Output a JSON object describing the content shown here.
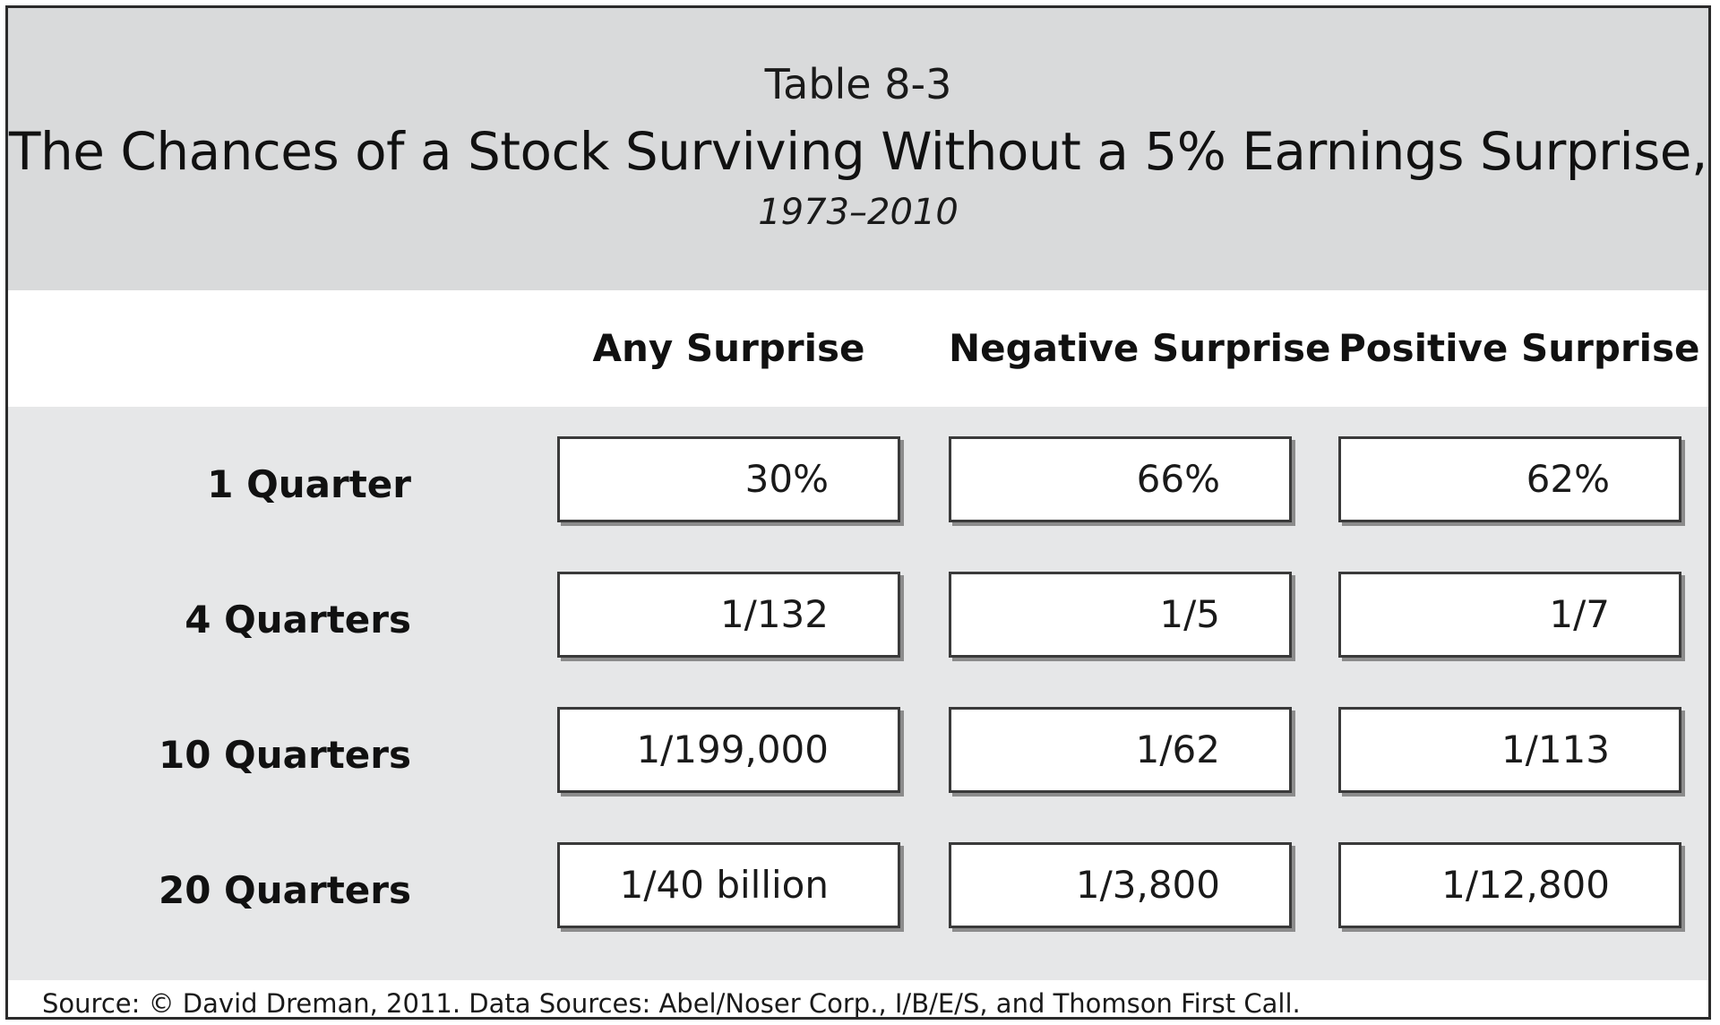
{
  "header": {
    "table_label": "Table 8-3",
    "title": "The Chances of a Stock Surviving Without a 5% Earnings Surprise,",
    "subtitle": "1973–2010"
  },
  "source": "Source: © David Dreman, 2011. Data Sources: Abel/Noser Corp., I/B/E/S, and Thomson First Call.",
  "colors": {
    "header_band": "#d9dadb",
    "body_band": "#e6e7e8",
    "cell_background": "#ffffff",
    "cell_border": "#3a3a3a"
  },
  "chart_data": {
    "type": "table",
    "title": "The Chances of a Stock Surviving Without a 5% Earnings Surprise,",
    "subtitle": "1973–2010",
    "columns": [
      "Any Surprise",
      "Negative Surprise",
      "Positive Surprise"
    ],
    "rows": [
      {
        "label": "1 Quarter",
        "values": [
          "30%",
          "66%",
          "62%"
        ]
      },
      {
        "label": "4 Quarters",
        "values": [
          "1/132",
          "1/5",
          "1/7"
        ]
      },
      {
        "label": "10 Quarters",
        "values": [
          "1/199,000",
          "1/62",
          "1/113"
        ]
      },
      {
        "label": "20 Quarters",
        "values": [
          "1/40 billion",
          "1/3,800",
          "1/12,800"
        ]
      }
    ]
  }
}
